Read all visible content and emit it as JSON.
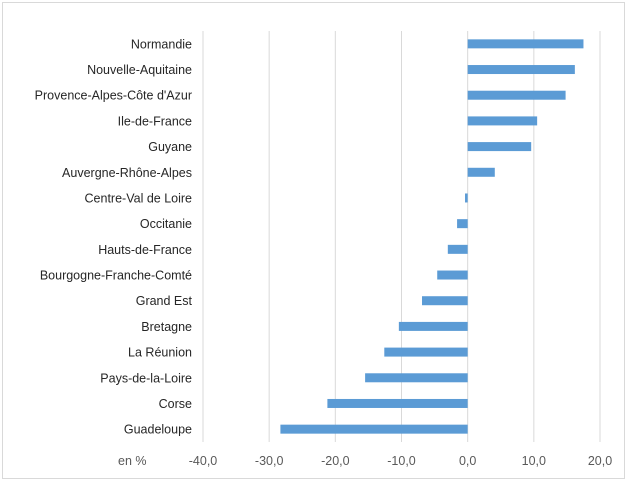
{
  "chart_data": {
    "type": "bar",
    "orientation": "horizontal",
    "categories": [
      "Normandie",
      "Nouvelle-Aquitaine",
      "Provence-Alpes-Côte d'Azur",
      "Ile-de-France",
      "Guyane",
      "Auvergne-Rhône-Alpes",
      "Centre-Val de Loire",
      "Occitanie",
      "Hauts-de-France",
      "Bourgogne-Franche-Comté",
      "Grand Est",
      "Bretagne",
      "La Réunion",
      "Pays-de-la-Loire",
      "Corse",
      "Guadeloupe"
    ],
    "values": [
      17.5,
      16.2,
      14.8,
      10.5,
      9.6,
      4.1,
      -0.4,
      -1.6,
      -3.0,
      -4.6,
      -6.9,
      -10.4,
      -12.6,
      -15.5,
      -21.2,
      -28.3
    ],
    "xlim": [
      -40,
      20
    ],
    "xticks": [
      -40,
      -30,
      -20,
      -10,
      0,
      10,
      20
    ],
    "tick_labels": [
      "-40,0",
      "-30,0",
      "-20,0",
      "-10,0",
      "0,0",
      "10,0",
      "20,0"
    ],
    "unit_label": "en %",
    "bar_color": "#5b9bd5",
    "grid": true,
    "legend": "none"
  }
}
